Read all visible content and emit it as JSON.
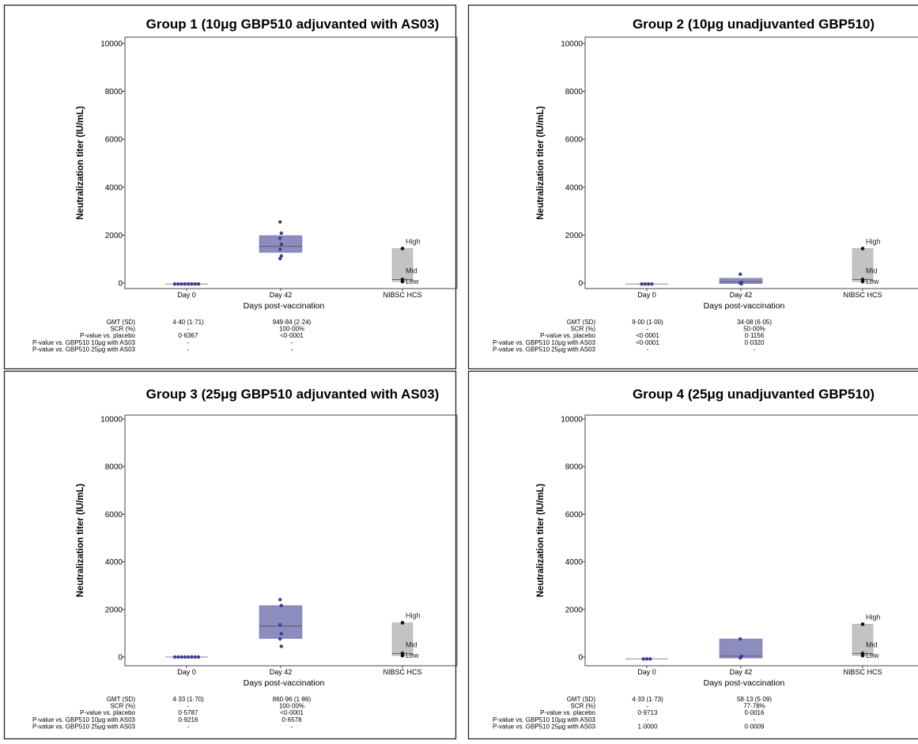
{
  "chart_data": [
    {
      "type": "box",
      "title": "Group 1 (10μg GBP510 adjuvanted with AS03)",
      "xlabel": "Days post-vaccination",
      "ylabel": "Neutralization titer (IU/mL)",
      "ylim": [
        0,
        10000
      ],
      "yticks": [
        "0",
        "2000",
        "4000",
        "6000",
        "8000",
        "10000"
      ],
      "categories": [
        "Day 0",
        "Day 42",
        "NIBSC HCS"
      ],
      "boxes": [
        {
          "category": "Day 0",
          "q1": -40,
          "median": -40,
          "q3": -40,
          "points": [
            -40,
            -40,
            -40,
            -40,
            -40,
            -40,
            -40,
            -40
          ]
        },
        {
          "category": "Day 42",
          "q1": 1280,
          "median": 1530,
          "q3": 1980,
          "points": [
            2550,
            2080,
            1870,
            1620,
            1410,
            1130,
            1020
          ]
        },
        {
          "category": "NIBSC HCS",
          "q1": 60,
          "median": 150,
          "q3": 1440,
          "points": [
            1440,
            150,
            60
          ],
          "point_labels": [
            "High",
            "Mid",
            "Low"
          ]
        }
      ],
      "stats_rows": [
        "GMT (SD)",
        "SCR (%)",
        "P-value vs. placebo",
        "P-value vs. GBP510 10μg with AS03",
        "P-value vs. GBP510 25μg with AS03"
      ],
      "stats_day0": [
        "4·40 (1·71)",
        "-",
        "0·6367",
        "-",
        "-"
      ],
      "stats_day42": [
        "949·84 (2·24)",
        "100·00%",
        "<0·0001",
        "-",
        "-"
      ]
    },
    {
      "type": "box",
      "title": "Group 2 (10μg unadjuvanted GBP510)",
      "xlabel": "Days post-vaccination",
      "ylabel": "Neutralization titer (IU/mL)",
      "ylim": [
        0,
        10000
      ],
      "yticks": [
        "0",
        "2000",
        "4000",
        "6000",
        "8000",
        "10000"
      ],
      "categories": [
        "Day 0",
        "Day 42",
        "NIBSC HCS"
      ],
      "boxes": [
        {
          "category": "Day 0",
          "q1": -40,
          "median": -40,
          "q3": -40,
          "points": [
            -40,
            -40,
            -40,
            -40
          ]
        },
        {
          "category": "Day 42",
          "q1": -20,
          "median": 60,
          "q3": 200,
          "points": [
            370,
            30,
            -10,
            -30
          ]
        },
        {
          "category": "NIBSC HCS",
          "q1": 60,
          "median": 150,
          "q3": 1440,
          "points": [
            1440,
            150,
            60
          ],
          "point_labels": [
            "High",
            "Mid",
            "Low"
          ]
        }
      ],
      "stats_rows": [
        "GMT (SD)",
        "SCR (%)",
        "P-value vs. placebo",
        "P-value vs. GBP510 10μg with AS03",
        "P-value vs. GBP510 25μg with AS03"
      ],
      "stats_day0": [
        "9·00 (1·00)",
        "-",
        "<0·0001",
        "<0·0001",
        "-"
      ],
      "stats_day42": [
        "34·08 (6·05)",
        "50·00%",
        "0·1156",
        "0·0320",
        "-"
      ]
    },
    {
      "type": "box",
      "title": "Group 3 (25μg GBP510 adjuvanted with AS03)",
      "xlabel": "Days post-vaccination",
      "ylabel": "Neutralization titer (IU/mL)",
      "ylim": [
        0,
        10000
      ],
      "yticks": [
        "0",
        "2000",
        "4000",
        "6000",
        "8000",
        "10000"
      ],
      "categories": [
        "Day 0",
        "Day 42",
        "NIBSC HCS"
      ],
      "boxes": [
        {
          "category": "Day 0",
          "q1": 0,
          "median": 0,
          "q3": 0,
          "points": [
            0,
            0,
            0,
            0,
            0,
            0,
            0,
            0
          ]
        },
        {
          "category": "Day 42",
          "q1": 780,
          "median": 1300,
          "q3": 2160,
          "points": [
            2410,
            2160,
            1350,
            980,
            760,
            450
          ]
        },
        {
          "category": "NIBSC HCS",
          "q1": 60,
          "median": 150,
          "q3": 1440,
          "points": [
            1440,
            150,
            60
          ],
          "point_labels": [
            "High",
            "Mid",
            "Low"
          ]
        }
      ],
      "stats_rows": [
        "GMT (SD)",
        "SCR (%)",
        "P-value vs. placebo",
        "P-value vs. GBP510 10μg with AS03",
        "P-value vs. GBP510 25μg with AS03"
      ],
      "stats_day0": [
        "4·33 (1·70)",
        "-",
        "0·5787",
        "0·9216",
        "-"
      ],
      "stats_day42": [
        "860·96 (1·86)",
        "100·00%",
        "<0·0001",
        "0·6578",
        "-"
      ]
    },
    {
      "type": "box",
      "title": "Group 4 (25μg unadjuvanted GBP510)",
      "xlabel": "Days post-vaccination",
      "ylabel": "Neutralization titer (IU/mL)",
      "ylim": [
        0,
        10000
      ],
      "yticks": [
        "0",
        "2000",
        "4000",
        "6000",
        "8000",
        "10000"
      ],
      "categories": [
        "Day 0",
        "Day 42",
        "NIBSC HCS"
      ],
      "boxes": [
        {
          "category": "Day 0",
          "q1": -80,
          "median": -80,
          "q3": -80,
          "points": [
            -80,
            -80,
            -80
          ]
        },
        {
          "category": "Day 42",
          "q1": -40,
          "median": 40,
          "q3": 760,
          "points": [
            760,
            30,
            -40
          ]
        },
        {
          "category": "NIBSC HCS",
          "q1": 60,
          "median": 150,
          "q3": 1380,
          "points": [
            1380,
            150,
            60
          ],
          "point_labels": [
            "High",
            "Mid",
            "Low"
          ]
        }
      ],
      "stats_rows": [
        "GMT (SD)",
        "SCR (%)",
        "P-value vs. placebo",
        "P-value vs. GBP510 10μg with AS03",
        "P-value vs. GBP510 25μg with AS03"
      ],
      "stats_day0": [
        "4·33 (1·73)",
        "-",
        "0·9713",
        "-",
        "1·0000"
      ],
      "stats_day42": [
        "58·13 (5·09)",
        "77·78%",
        "0·0016",
        "-",
        "0·0009"
      ]
    }
  ],
  "colors": {
    "vaccine_box": "#8c8cbf",
    "vaccine_point": "#3f3f8f",
    "hcs_box": "#c3c3c3",
    "hcs_point": "#111111",
    "median_line": "#555566"
  }
}
